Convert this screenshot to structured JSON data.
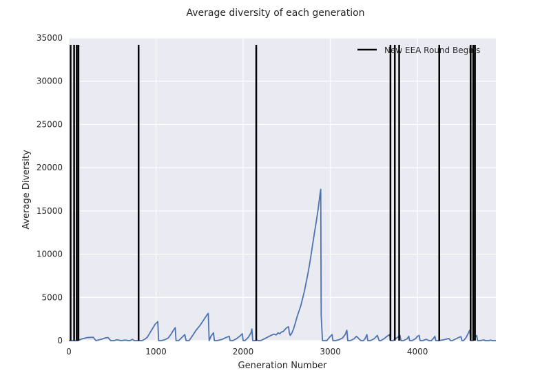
{
  "chart_data": {
    "type": "line",
    "title": "Average diversity of each generation",
    "xlabel": "Generation Number",
    "ylabel": "Average Diversity",
    "xlim": [
      0,
      4900
    ],
    "ylim": [
      0,
      35000
    ],
    "x_ticks": [
      0,
      1000,
      2000,
      3000,
      4000
    ],
    "y_ticks": [
      0,
      5000,
      10000,
      15000,
      20000,
      25000,
      30000,
      35000
    ],
    "grid": true,
    "legend_position": "top-right",
    "colors": {
      "series": "#4c72b0",
      "round_marker": "#000000",
      "plot_background": "#eaeaf2",
      "grid": "#ffffff"
    },
    "series": [
      {
        "name": "",
        "points": [
          [
            0,
            0
          ],
          [
            100,
            0
          ],
          [
            150,
            200
          ],
          [
            210,
            350
          ],
          [
            280,
            380
          ],
          [
            310,
            0
          ],
          [
            330,
            50
          ],
          [
            380,
            180
          ],
          [
            420,
            320
          ],
          [
            450,
            360
          ],
          [
            480,
            0
          ],
          [
            520,
            0
          ],
          [
            550,
            100
          ],
          [
            600,
            0
          ],
          [
            650,
            60
          ],
          [
            680,
            0
          ],
          [
            700,
            0
          ],
          [
            730,
            150
          ],
          [
            750,
            0
          ],
          [
            780,
            0
          ],
          [
            800,
            0
          ],
          [
            840,
            0
          ],
          [
            870,
            150
          ],
          [
            900,
            400
          ],
          [
            930,
            900
          ],
          [
            960,
            1400
          ],
          [
            990,
            1900
          ],
          [
            1020,
            2200
          ],
          [
            1030,
            0
          ],
          [
            1060,
            0
          ],
          [
            1100,
            100
          ],
          [
            1140,
            300
          ],
          [
            1170,
            700
          ],
          [
            1200,
            1200
          ],
          [
            1220,
            1500
          ],
          [
            1230,
            0
          ],
          [
            1260,
            0
          ],
          [
            1300,
            400
          ],
          [
            1330,
            700
          ],
          [
            1345,
            0
          ],
          [
            1380,
            0
          ],
          [
            1420,
            600
          ],
          [
            1460,
            1200
          ],
          [
            1500,
            1700
          ],
          [
            1540,
            2300
          ],
          [
            1580,
            2900
          ],
          [
            1600,
            3150
          ],
          [
            1610,
            0
          ],
          [
            1630,
            500
          ],
          [
            1660,
            900
          ],
          [
            1670,
            0
          ],
          [
            1700,
            0
          ],
          [
            1760,
            150
          ],
          [
            1800,
            350
          ],
          [
            1840,
            500
          ],
          [
            1850,
            0
          ],
          [
            1880,
            0
          ],
          [
            1920,
            200
          ],
          [
            1960,
            500
          ],
          [
            1990,
            800
          ],
          [
            2000,
            0
          ],
          [
            2020,
            0
          ],
          [
            2060,
            400
          ],
          [
            2090,
            900
          ],
          [
            2100,
            1350
          ],
          [
            2110,
            0
          ],
          [
            2130,
            0
          ],
          [
            2160,
            50
          ],
          [
            2180,
            0
          ],
          [
            2200,
            0
          ],
          [
            2250,
            250
          ],
          [
            2300,
            500
          ],
          [
            2340,
            700
          ],
          [
            2360,
            750
          ],
          [
            2380,
            650
          ],
          [
            2400,
            900
          ],
          [
            2420,
            800
          ],
          [
            2440,
            1000
          ],
          [
            2460,
            1050
          ],
          [
            2480,
            1300
          ],
          [
            2500,
            1500
          ],
          [
            2520,
            1600
          ],
          [
            2530,
            900
          ],
          [
            2540,
            600
          ],
          [
            2560,
            900
          ],
          [
            2580,
            1400
          ],
          [
            2600,
            2100
          ],
          [
            2620,
            2800
          ],
          [
            2640,
            3400
          ],
          [
            2660,
            4000
          ],
          [
            2680,
            4800
          ],
          [
            2700,
            5600
          ],
          [
            2720,
            6600
          ],
          [
            2740,
            7600
          ],
          [
            2760,
            8700
          ],
          [
            2780,
            10000
          ],
          [
            2800,
            11300
          ],
          [
            2820,
            12600
          ],
          [
            2840,
            13800
          ],
          [
            2860,
            15200
          ],
          [
            2880,
            16800
          ],
          [
            2890,
            17500
          ],
          [
            2895,
            3000
          ],
          [
            2910,
            0
          ],
          [
            2960,
            0
          ],
          [
            3000,
            500
          ],
          [
            3020,
            700
          ],
          [
            3030,
            0
          ],
          [
            3060,
            0
          ],
          [
            3100,
            100
          ],
          [
            3140,
            300
          ],
          [
            3170,
            700
          ],
          [
            3190,
            1200
          ],
          [
            3200,
            0
          ],
          [
            3230,
            0
          ],
          [
            3270,
            200
          ],
          [
            3300,
            500
          ],
          [
            3320,
            300
          ],
          [
            3350,
            0
          ],
          [
            3380,
            0
          ],
          [
            3400,
            250
          ],
          [
            3420,
            700
          ],
          [
            3430,
            0
          ],
          [
            3460,
            0
          ],
          [
            3500,
            200
          ],
          [
            3540,
            600
          ],
          [
            3560,
            0
          ],
          [
            3580,
            0
          ],
          [
            3620,
            250
          ],
          [
            3650,
            500
          ],
          [
            3680,
            700
          ],
          [
            3690,
            0
          ],
          [
            3720,
            0
          ],
          [
            3760,
            300
          ],
          [
            3800,
            600
          ],
          [
            3810,
            0
          ],
          [
            3840,
            0
          ],
          [
            3880,
            200
          ],
          [
            3900,
            500
          ],
          [
            3910,
            0
          ],
          [
            3940,
            0
          ],
          [
            3980,
            250
          ],
          [
            4000,
            500
          ],
          [
            4020,
            600
          ],
          [
            4030,
            0
          ],
          [
            4060,
            0
          ],
          [
            4100,
            150
          ],
          [
            4130,
            0
          ],
          [
            4160,
            0
          ],
          [
            4190,
            350
          ],
          [
            4200,
            500
          ],
          [
            4210,
            0
          ],
          [
            4250,
            0
          ],
          [
            4300,
            100
          ],
          [
            4360,
            250
          ],
          [
            4380,
            0
          ],
          [
            4400,
            0
          ],
          [
            4440,
            200
          ],
          [
            4480,
            400
          ],
          [
            4500,
            450
          ],
          [
            4510,
            0
          ],
          [
            4530,
            0
          ],
          [
            4560,
            400
          ],
          [
            4580,
            800
          ],
          [
            4600,
            1200
          ],
          [
            4610,
            0
          ],
          [
            4640,
            0
          ],
          [
            4660,
            300
          ],
          [
            4680,
            600
          ],
          [
            4690,
            0
          ],
          [
            4720,
            0
          ],
          [
            4760,
            80
          ],
          [
            4780,
            0
          ],
          [
            4820,
            0
          ],
          [
            4840,
            60
          ],
          [
            4860,
            0
          ],
          [
            4900,
            0
          ]
        ]
      }
    ],
    "round_markers": {
      "label": "New EEA Round Begins",
      "x": [
        20,
        60,
        90,
        110,
        800,
        2150,
        3690,
        3740,
        3790,
        4250,
        4610,
        4640,
        4660
      ],
      "ymax": 34200
    }
  }
}
